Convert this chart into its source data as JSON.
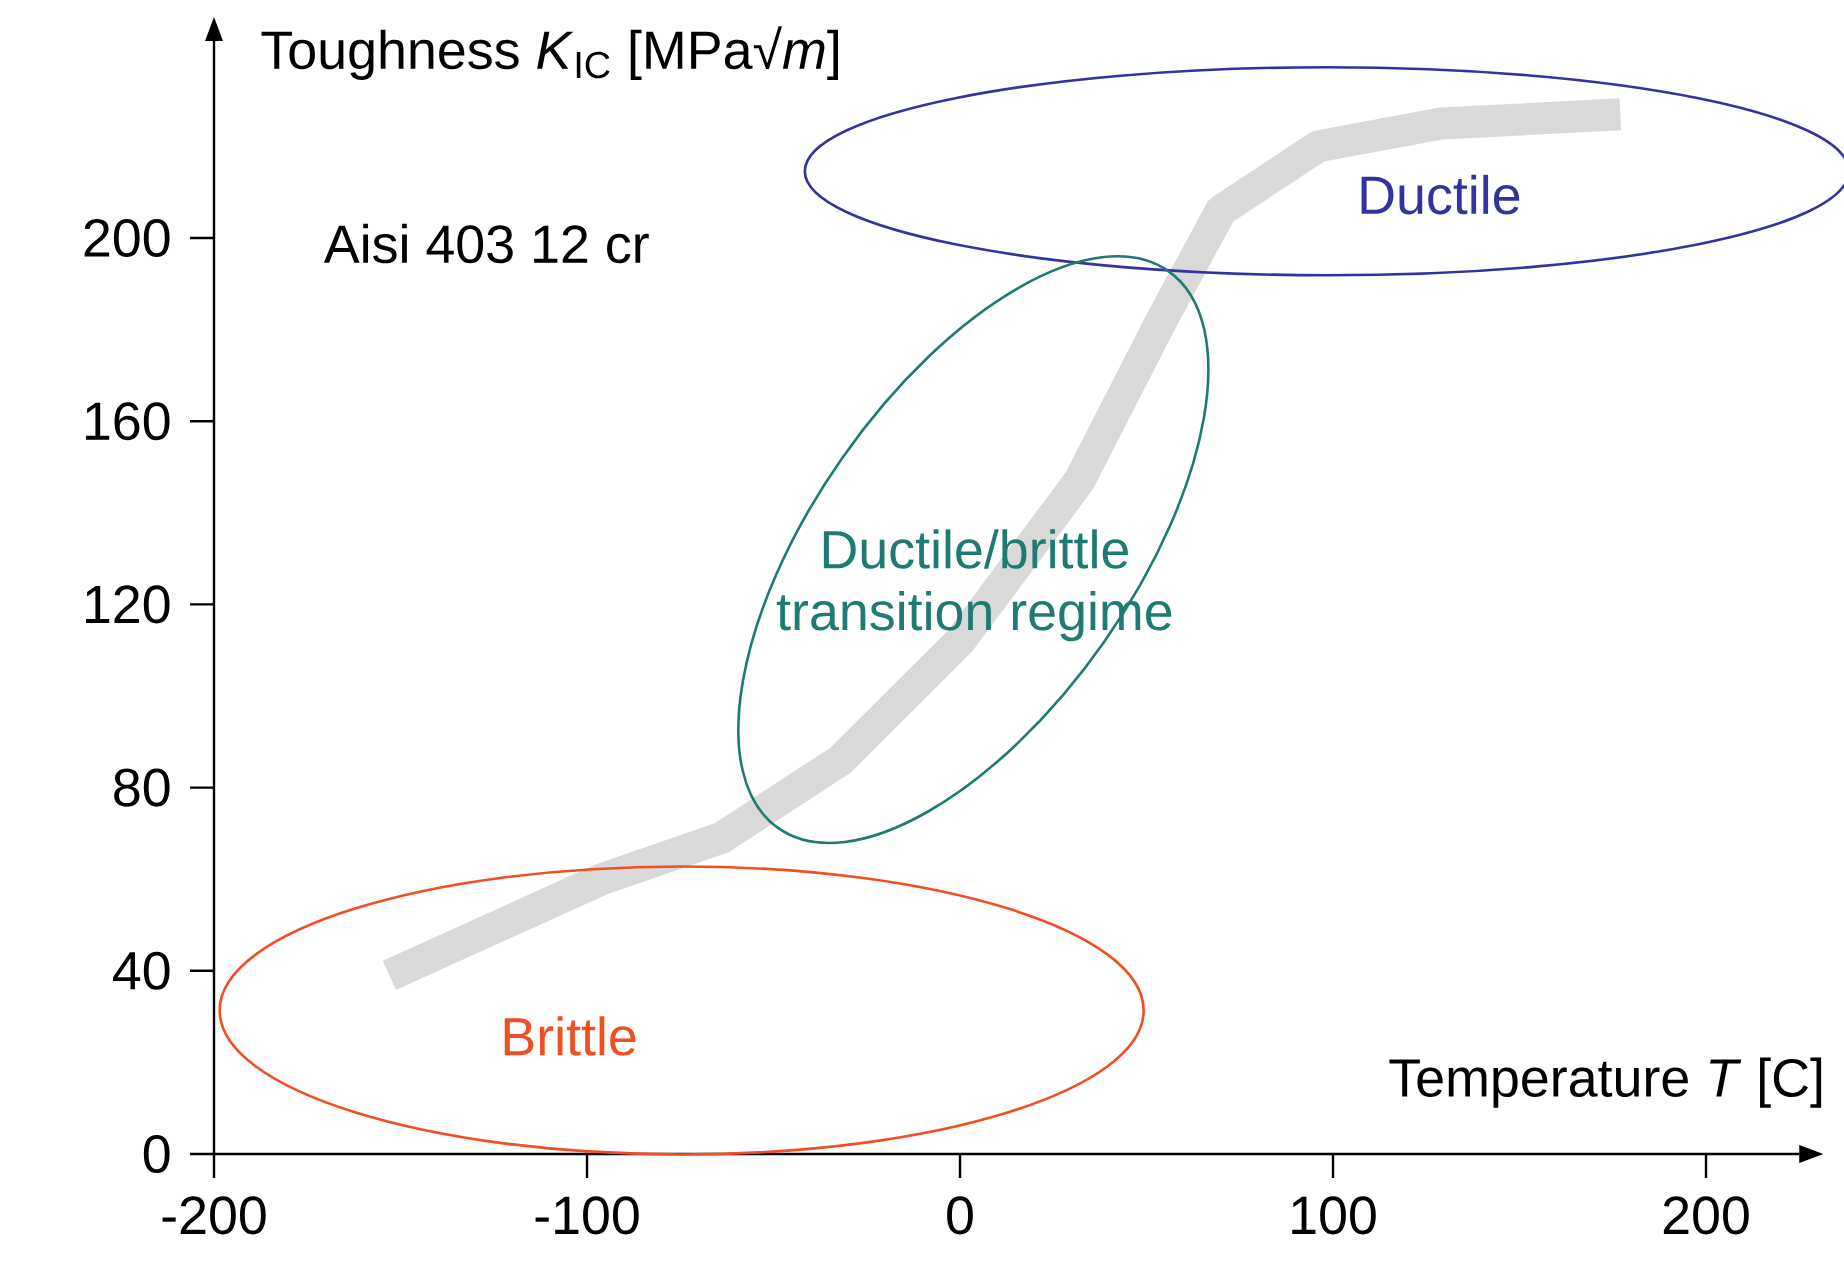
{
  "chart_data": {
    "type": "line",
    "xlabel": "Temperature *T* [C]",
    "ylabel": "Toughness *K*$_{IC}$ [MPa√*m*]",
    "x": [
      -153,
      -96,
      -64,
      -32,
      0,
      32,
      54,
      70,
      96,
      129,
      177
    ],
    "series": [
      {
        "color": "#d9d9d9",
        "values": [
          39,
          60,
          69,
          86,
          112,
          147,
          182,
          206,
          220,
          225,
          227
        ]
      }
    ],
    "xlim": [
      -200,
      225
    ],
    "ylim": [
      0,
      243
    ],
    "xticks": [
      -200,
      -100,
      0,
      100,
      200
    ],
    "yticks": [
      0,
      40,
      80,
      120,
      160,
      200
    ],
    "marker": "none",
    "line_style": "solid",
    "grid": false,
    "annotations": [
      "Aisi 403 12 cr",
      "Ductile",
      "Ductile/brittle transition regime",
      "Brittle"
    ]
  }
}
